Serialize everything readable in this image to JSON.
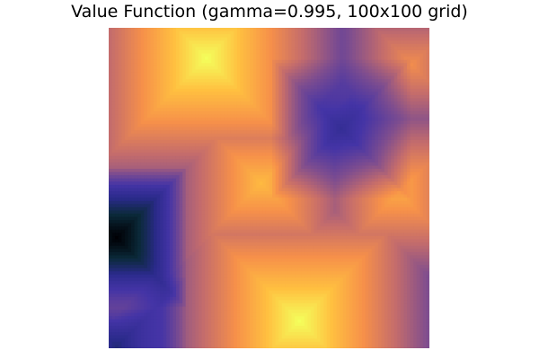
{
  "chart_data": {
    "type": "heatmap",
    "title": "Value Function (gamma=0.995, 100x100 grid)",
    "xlabel": "",
    "ylabel": "",
    "grid_size": [
      100,
      100
    ],
    "axes_visible": false,
    "legend": "none",
    "colormap": [
      "#000004",
      "#0b2a3a",
      "#2a2a8a",
      "#4434a6",
      "#7e4d8f",
      "#c46c6c",
      "#f6904a",
      "#ffc040",
      "#f4ff5c"
    ],
    "value_range": [
      0,
      1
    ],
    "peaks": [
      {
        "x": 30,
        "y": 9,
        "value": 1.0
      },
      {
        "x": 59,
        "y": 91,
        "value": 1.0
      },
      {
        "x": 47,
        "y": 48,
        "value": 0.86
      },
      {
        "x": 90,
        "y": 51,
        "value": 0.82
      },
      {
        "x": 94,
        "y": 11,
        "value": 0.74
      },
      {
        "x": 1,
        "y": 90,
        "value": 0.66
      }
    ],
    "valleys": [
      {
        "x": 2,
        "y": 65,
        "value": 0.0
      },
      {
        "x": 72,
        "y": 31,
        "value": 0.3
      },
      {
        "x": 2,
        "y": 99,
        "value": 0.22
      }
    ]
  }
}
